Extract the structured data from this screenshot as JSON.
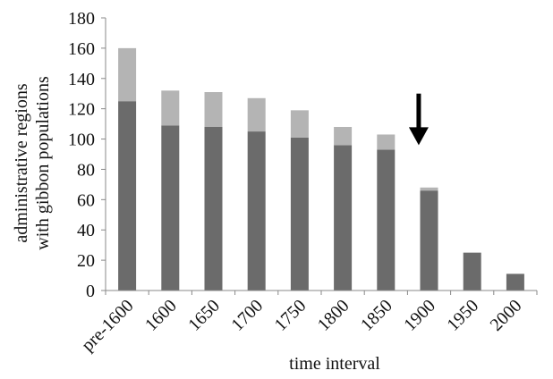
{
  "chart_data": {
    "type": "bar",
    "stacked": true,
    "categories": [
      "pre-1600",
      "1600",
      "1650",
      "1700",
      "1750",
      "1800",
      "1850",
      "1900",
      "1950",
      "2000"
    ],
    "series": [
      {
        "color": "#6b6b6b",
        "values": [
          125,
          109,
          108,
          105,
          101,
          96,
          93,
          66,
          25,
          11
        ]
      },
      {
        "color": "#b4b4b4",
        "values": [
          35,
          23,
          23,
          22,
          18,
          12,
          10,
          2,
          0,
          0
        ]
      }
    ],
    "title": "",
    "xlabel": "time interval",
    "ylabel_lines": [
      "administrative regions",
      "with gibbon populations"
    ],
    "ylim": [
      0,
      180
    ],
    "yticks": [
      0,
      20,
      40,
      60,
      80,
      100,
      120,
      140,
      160,
      180
    ],
    "grid": false,
    "legend": "none",
    "annotation": {
      "type": "arrow-down",
      "category": "1900",
      "from_value": 130,
      "to_value": 96
    }
  }
}
